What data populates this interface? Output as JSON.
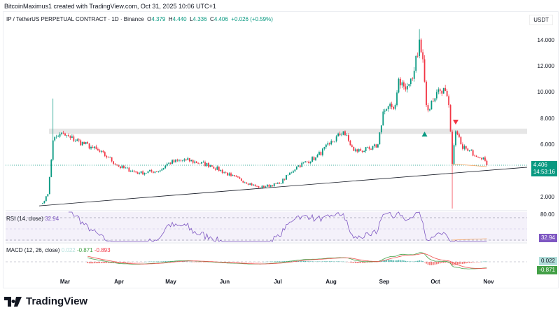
{
  "header": {
    "credit": "BitcoinMaximus1 created with TradingView.com, Oct 31, 2025 10:06 UTC+1"
  },
  "legend": {
    "symbol": "IP / TetherUS PERPETUAL CONTRACT · 1D · Binance",
    "o_label": "O",
    "o": "4.379",
    "h_label": "H",
    "h": "4.440",
    "l_label": "L",
    "l": "4.336",
    "c_label": "C",
    "c": "4.406",
    "change": "+0.026 (+0.59%)"
  },
  "axis": {
    "unit": "USDT",
    "price_labels": [
      "14.000",
      "12.000",
      "10.000",
      "8.000",
      "6.000",
      "2.000"
    ],
    "rsi_label": "80.00",
    "current_price": "4.406",
    "countdown": "14:53:16",
    "rsi_value": "32.94",
    "macd_value": "0.022",
    "signal_value": "-0.871"
  },
  "rsi": {
    "title": "RSI (14, close)",
    "value": "32.94"
  },
  "macd": {
    "title": "MACD (12, 26, close)",
    "hist": "0.022",
    "macd": "-0.871",
    "signal": "-0.893"
  },
  "months": [
    "Mar",
    "Apr",
    "May",
    "Jun",
    "Jul",
    "Aug",
    "Sep",
    "Oct",
    "Nov"
  ],
  "brand": "TradingView",
  "colors": {
    "up": "#089981",
    "down": "#F23645",
    "rsi": "#7E57C2",
    "macd": "#2962FF"
  },
  "chart_data": {
    "type": "candlestick",
    "title": "IP / TetherUS PERPETUAL CONTRACT · 1D · Binance",
    "x_unit": "days since Mar 1 2025",
    "close_keypoints": [
      [
        -13,
        1.5
      ],
      [
        -10,
        2.2
      ],
      [
        -7,
        6.3
      ],
      [
        -3,
        6.8
      ],
      [
        3,
        6.5
      ],
      [
        15,
        5.8
      ],
      [
        25,
        5.0
      ],
      [
        31,
        4.3
      ],
      [
        43,
        3.8
      ],
      [
        55,
        4.0
      ],
      [
        60,
        4.6
      ],
      [
        70,
        4.8
      ],
      [
        84,
        4.4
      ],
      [
        96,
        3.6
      ],
      [
        112,
        2.7
      ],
      [
        124,
        3.0
      ],
      [
        134,
        4.3
      ],
      [
        145,
        5.0
      ],
      [
        153,
        6.0
      ],
      [
        161,
        7.0
      ],
      [
        167,
        5.5
      ],
      [
        177,
        5.6
      ],
      [
        181,
        6.0
      ],
      [
        184,
        8.5
      ],
      [
        191,
        9.0
      ],
      [
        193,
        11.0
      ],
      [
        197,
        10.2
      ],
      [
        201,
        11.0
      ],
      [
        205,
        14.0
      ],
      [
        207,
        12.5
      ],
      [
        209,
        9.0
      ],
      [
        210,
        8.6
      ],
      [
        215,
        10.0
      ],
      [
        219,
        10.3
      ],
      [
        222,
        9.0
      ],
      [
        224,
        4.5
      ],
      [
        226,
        7.0
      ],
      [
        229,
        6.0
      ],
      [
        233,
        5.5
      ],
      [
        242,
        5.0
      ],
      [
        244,
        4.406
      ]
    ],
    "special_wicks": [
      [
        -7,
        9.5,
        "high"
      ],
      [
        224,
        1.1,
        "low"
      ],
      [
        205,
        14.8,
        "high"
      ]
    ],
    "resistance_zone": [
      6.8,
      7.2
    ],
    "support_line": [
      [
        -15,
        1.3
      ],
      [
        255,
        4.25
      ]
    ],
    "ylim": [
      1,
      15.5
    ],
    "yticks": [
      2,
      6,
      8,
      10,
      12,
      14
    ]
  }
}
